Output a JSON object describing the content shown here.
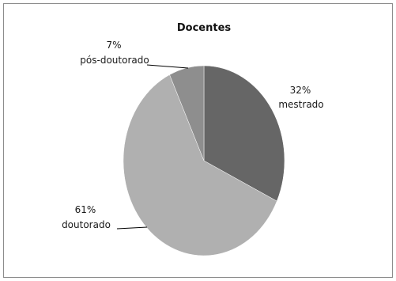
{
  "chart_data": {
    "type": "pie",
    "title": "Docentes",
    "slices": [
      {
        "label": "mestrado",
        "value": 32,
        "value_text": "32%",
        "color": "#666666"
      },
      {
        "label": "doutorado",
        "value": 61,
        "value_text": "61%",
        "color": "#b0b0b0"
      },
      {
        "label": "pós-doutorado",
        "value": 7,
        "value_text": "7%",
        "color": "#8e8e8e"
      }
    ],
    "start_angle_deg": 0,
    "direction": "clockwise",
    "legend": "none"
  }
}
